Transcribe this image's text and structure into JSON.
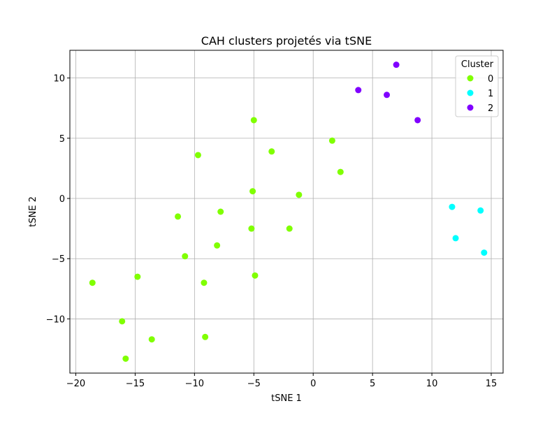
{
  "chart_data": {
    "type": "scatter",
    "title": "CAH clusters projetés via tSNE",
    "xlabel": "tSNE 1",
    "ylabel": "tSNE 2",
    "xlim": [
      -20.5,
      16.0
    ],
    "ylim": [
      -14.5,
      12.3
    ],
    "xticks": [
      -20,
      -15,
      -10,
      -5,
      0,
      5,
      10,
      15
    ],
    "yticks": [
      -10,
      -5,
      0,
      5,
      10
    ],
    "xtick_labels": [
      "−20",
      "−15",
      "−10",
      "−5",
      "0",
      "5",
      "10",
      "15"
    ],
    "ytick_labels": [
      "−10",
      "−5",
      "0",
      "5",
      "10"
    ],
    "grid": true,
    "legend": {
      "title": "Cluster",
      "placement": "top-right",
      "entries": [
        {
          "label": "0",
          "color": "#80ff00"
        },
        {
          "label": "1",
          "color": "#00ffff"
        },
        {
          "label": "2",
          "color": "#8000ff"
        }
      ]
    },
    "series": [
      {
        "name": "0",
        "color": "#80ff00",
        "points": [
          [
            -5.0,
            6.5
          ],
          [
            1.6,
            4.8
          ],
          [
            -3.5,
            3.9
          ],
          [
            -9.7,
            3.6
          ],
          [
            2.3,
            2.2
          ],
          [
            -5.1,
            0.6
          ],
          [
            -1.2,
            0.3
          ],
          [
            -7.8,
            -1.1
          ],
          [
            -11.4,
            -1.5
          ],
          [
            -5.2,
            -2.5
          ],
          [
            -2.0,
            -2.5
          ],
          [
            -8.1,
            -3.9
          ],
          [
            -10.8,
            -4.8
          ],
          [
            -4.9,
            -6.4
          ],
          [
            -14.8,
            -6.5
          ],
          [
            -9.2,
            -7.0
          ],
          [
            -18.6,
            -7.0
          ],
          [
            -16.1,
            -10.2
          ],
          [
            -9.1,
            -11.5
          ],
          [
            -13.6,
            -11.7
          ],
          [
            -15.8,
            -13.3
          ]
        ]
      },
      {
        "name": "1",
        "color": "#00ffff",
        "points": [
          [
            11.7,
            -0.7
          ],
          [
            14.1,
            -1.0
          ],
          [
            12.0,
            -3.3
          ],
          [
            14.4,
            -4.5
          ]
        ]
      },
      {
        "name": "2",
        "color": "#8000ff",
        "points": [
          [
            7.0,
            11.1
          ],
          [
            3.8,
            9.0
          ],
          [
            6.2,
            8.6
          ],
          [
            8.8,
            6.5
          ]
        ]
      }
    ]
  }
}
